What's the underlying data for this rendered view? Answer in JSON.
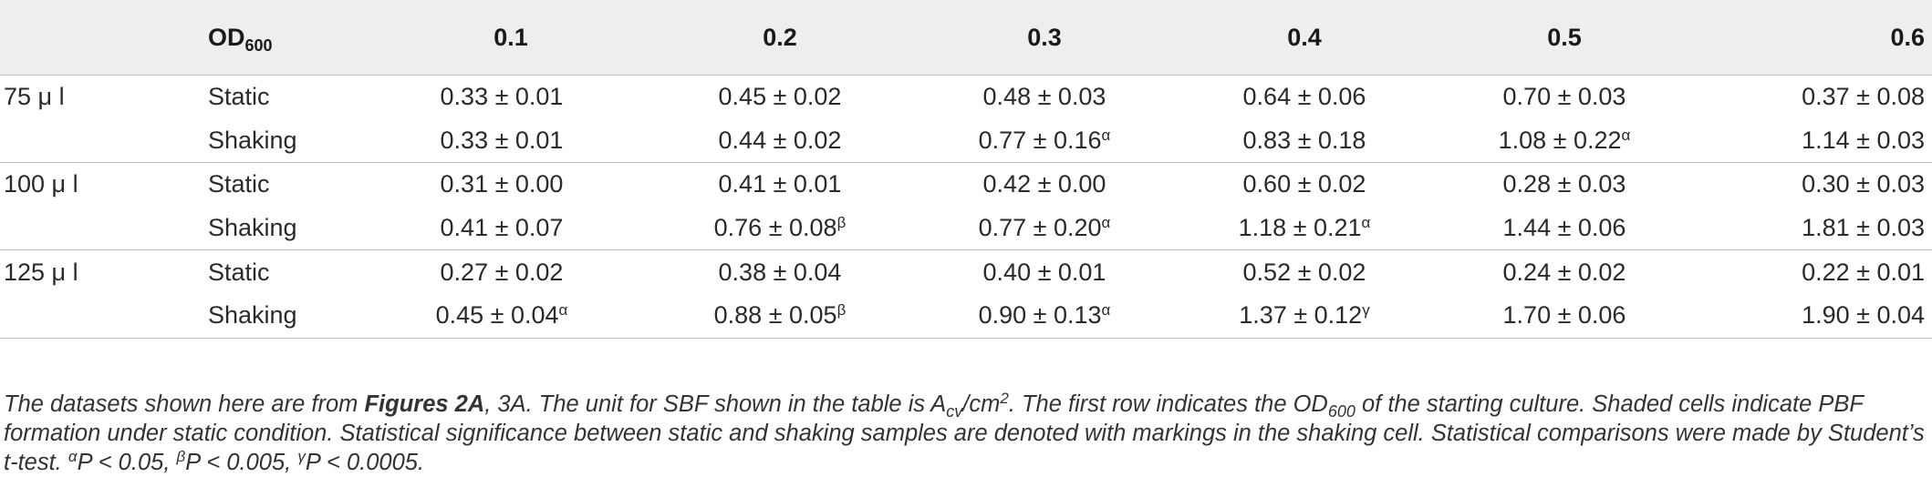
{
  "table": {
    "header": {
      "vol": "",
      "od_main": "OD",
      "od_sub": "600",
      "cols": [
        "0.1",
        "0.2",
        "0.3",
        "0.4",
        "0.5",
        "0.6"
      ]
    },
    "rows": [
      {
        "vol": "75 μ l",
        "cond": "Static",
        "cells": [
          {
            "v": "0.33 ± 0.01",
            "m": ""
          },
          {
            "v": "0.45 ± 0.02",
            "m": ""
          },
          {
            "v": "0.48 ± 0.03",
            "m": ""
          },
          {
            "v": "0.64 ± 0.06",
            "m": ""
          },
          {
            "v": "0.70 ± 0.03",
            "m": ""
          },
          {
            "v": "0.37 ± 0.08",
            "m": ""
          }
        ]
      },
      {
        "vol": "",
        "cond": "Shaking",
        "cells": [
          {
            "v": "0.33 ± 0.01",
            "m": ""
          },
          {
            "v": "0.44 ± 0.02",
            "m": ""
          },
          {
            "v": "0.77 ± 0.16",
            "m": "α"
          },
          {
            "v": "0.83 ± 0.18",
            "m": ""
          },
          {
            "v": "1.08 ± 0.22",
            "m": "α"
          },
          {
            "v": "1.14 ± 0.03",
            "m": ""
          }
        ]
      },
      {
        "vol": "100 μ l",
        "cond": "Static",
        "cells": [
          {
            "v": "0.31 ± 0.00",
            "m": ""
          },
          {
            "v": "0.41 ± 0.01",
            "m": ""
          },
          {
            "v": "0.42 ± 0.00",
            "m": ""
          },
          {
            "v": "0.60 ± 0.02",
            "m": ""
          },
          {
            "v": "0.28 ± 0.03",
            "m": ""
          },
          {
            "v": "0.30 ± 0.03",
            "m": ""
          }
        ]
      },
      {
        "vol": "",
        "cond": "Shaking",
        "cells": [
          {
            "v": "0.41 ± 0.07",
            "m": ""
          },
          {
            "v": "0.76 ± 0.08",
            "m": "β"
          },
          {
            "v": "0.77 ± 0.20",
            "m": "α"
          },
          {
            "v": "1.18 ± 0.21",
            "m": "α"
          },
          {
            "v": "1.44 ± 0.06",
            "m": ""
          },
          {
            "v": "1.81 ± 0.03",
            "m": ""
          }
        ]
      },
      {
        "vol": "125 μ l",
        "cond": "Static",
        "cells": [
          {
            "v": "0.27 ± 0.02",
            "m": ""
          },
          {
            "v": "0.38 ± 0.04",
            "m": ""
          },
          {
            "v": "0.40 ± 0.01",
            "m": ""
          },
          {
            "v": "0.52 ± 0.02",
            "m": ""
          },
          {
            "v": "0.24 ± 0.02",
            "m": ""
          },
          {
            "v": "0.22 ± 0.01",
            "m": ""
          }
        ]
      },
      {
        "vol": "",
        "cond": "Shaking",
        "cells": [
          {
            "v": "0.45 ± 0.04",
            "m": "α"
          },
          {
            "v": "0.88 ± 0.05",
            "m": "β"
          },
          {
            "v": "0.90 ± 0.13",
            "m": "α"
          },
          {
            "v": "1.37 ± 0.12",
            "m": "γ"
          },
          {
            "v": "1.70 ± 0.06",
            "m": ""
          },
          {
            "v": "1.90 ± 0.04",
            "m": ""
          }
        ]
      }
    ]
  },
  "caption": {
    "t1": "The datasets shown here are from ",
    "fig": "Figures 2A",
    "t2": ", 3A. The unit for SBF shown in the table is A",
    "acv_sub": "cv",
    "t3": "/cm",
    "cm_sup": "2",
    "t4": ". The first row indicates the OD",
    "od_sub": "600",
    "t5": " of the starting culture. Shaded cells indicate PBF formation under static condition. Statistical significance between static and shaking samples are denoted with markings in the shaking cell. Statistical comparisons were made by Student’s t-test. ",
    "s1": "α",
    "p1": "P < 0.05, ",
    "s2": "β",
    "p2": "P < 0.005, ",
    "s3": "γ",
    "p3": "P < 0.0005."
  }
}
